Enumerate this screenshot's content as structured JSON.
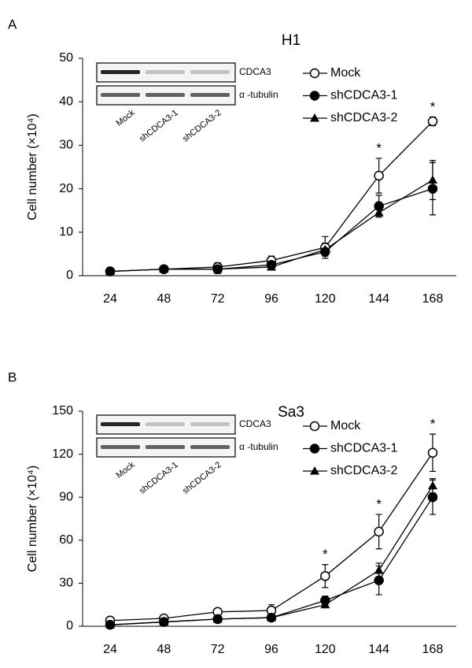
{
  "chart_data": [
    {
      "type": "line",
      "panel": "A",
      "title": "H1",
      "y_label": "Cell number (×10⁴)",
      "categories": [
        "24",
        "48",
        "72",
        "96",
        "120",
        "144",
        "168"
      ],
      "ylim": [
        0,
        50
      ],
      "yticks": [
        0,
        10,
        20,
        30,
        40,
        50
      ],
      "series": [
        {
          "name": "Mock",
          "color": "#000000",
          "marker": "open-circle",
          "values": [
            1,
            1.5,
            2,
            3.5,
            6.5,
            23,
            35.5
          ],
          "errors": [
            0.5,
            0.3,
            1,
            1,
            2.5,
            4,
            1
          ]
        },
        {
          "name": "shCDCA3-1",
          "color": "#000000",
          "marker": "circle",
          "values": [
            1,
            1.5,
            1.5,
            2.5,
            5.5,
            16,
            20
          ],
          "errors": [
            0.5,
            0.3,
            1,
            0.5,
            1.5,
            2.5,
            6
          ]
        },
        {
          "name": "shCDCA3-2",
          "color": "#000000",
          "marker": "triangle",
          "values": [
            1,
            1.5,
            1.5,
            2,
            6,
            14.5,
            22
          ],
          "errors": [
            0.3,
            0.3,
            0.5,
            0.5,
            1.5,
            1,
            4.5
          ]
        }
      ],
      "annotations": [
        {
          "text": "*",
          "at": "144"
        },
        {
          "text": "*",
          "at": "168"
        }
      ],
      "inset": {
        "rows": [
          "CDCA3",
          "α -tubulin"
        ],
        "lanes": [
          "Mock",
          "shCDCA3-1",
          "shCDCA3-2"
        ]
      }
    },
    {
      "type": "line",
      "panel": "B",
      "title": "Sa3",
      "y_label": "Cell number (×10⁴)",
      "categories": [
        "24",
        "48",
        "72",
        "96",
        "120",
        "144",
        "168"
      ],
      "ylim": [
        0,
        150
      ],
      "yticks": [
        0,
        30,
        60,
        90,
        120,
        150
      ],
      "series": [
        {
          "name": "Mock",
          "color": "#000000",
          "marker": "open-circle",
          "values": [
            4,
            5.5,
            10,
            11,
            35,
            66,
            121
          ],
          "errors": [
            1,
            1,
            2,
            4,
            8,
            12,
            13
          ]
        },
        {
          "name": "shCDCA3-1",
          "color": "#000000",
          "marker": "circle",
          "values": [
            1,
            3,
            5,
            6,
            18,
            32,
            90
          ],
          "errors": [
            0.5,
            0.5,
            1,
            1,
            3,
            10,
            12
          ]
        },
        {
          "name": "shCDCA3-2",
          "color": "#000000",
          "marker": "triangle",
          "values": [
            1,
            3,
            5,
            6,
            15,
            39,
            98
          ],
          "errors": [
            0.5,
            0.5,
            1,
            1,
            2,
            5,
            5
          ]
        }
      ],
      "annotations": [
        {
          "text": "*",
          "at": "120"
        },
        {
          "text": "*",
          "at": "144"
        },
        {
          "text": "*",
          "at": "168"
        }
      ],
      "inset": {
        "rows": [
          "CDCA3",
          "α -tubulin"
        ],
        "lanes": [
          "Mock",
          "shCDCA3-1",
          "shCDCA3-2"
        ]
      }
    }
  ]
}
